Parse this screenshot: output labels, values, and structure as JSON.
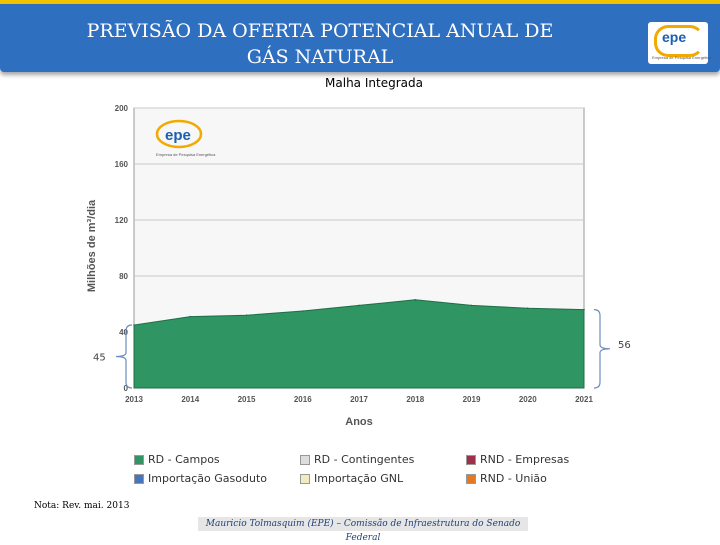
{
  "header": {
    "title_line1": "PREVISÃO DA OFERTA POTENCIAL ANUAL DE",
    "title_line2": "GÁS NATURAL",
    "logo_text": "epe",
    "logo_tagline": "Empresa de Pesquisa Energética"
  },
  "subtitle": "Malha Integrada",
  "colors": {
    "header": "#2e6fc0",
    "accent": "#f2c200",
    "area": "#2e9563"
  },
  "chart_data": {
    "type": "area",
    "x": [
      "2013",
      "2014",
      "2015",
      "2016",
      "2017",
      "2018",
      "2019",
      "2020",
      "2021"
    ],
    "series": [
      {
        "name": "RD - Campos",
        "color": "#2e9563",
        "values": [
          45,
          51,
          52,
          55,
          59,
          63,
          59,
          57,
          56
        ]
      }
    ],
    "ylim": [
      0,
      200
    ],
    "yticks": [
      0,
      40,
      80,
      120,
      160,
      200
    ],
    "xlabel": "Anos",
    "ylabel": "Milhões de m³/dia",
    "inset_logo_text": "epe",
    "inset_logo_tagline": "Empresa de Pesquisa Energética",
    "annotations": [
      {
        "label": "45",
        "at_x": "2013",
        "value": 45
      },
      {
        "label": "56",
        "at_x": "2021",
        "value": 56
      }
    ],
    "legend": [
      {
        "label": "RD - Campos",
        "color": "#2e9563"
      },
      {
        "label": "RD - Contingentes",
        "color": "#dddddd"
      },
      {
        "label": "RND - Empresas",
        "color": "#a0304a"
      },
      {
        "label": "Importação Gasoduto",
        "color": "#4a74b8"
      },
      {
        "label": "Importação GNL",
        "color": "#f0ecc0"
      },
      {
        "label": "RND - União",
        "color": "#e07a2a"
      }
    ],
    "grid": true
  },
  "note": "Nota: Rev. mai. 2013",
  "footer": "Mauricio Tolmasquim (EPE) – Comissão de Infraestrutura do Senado Federal"
}
